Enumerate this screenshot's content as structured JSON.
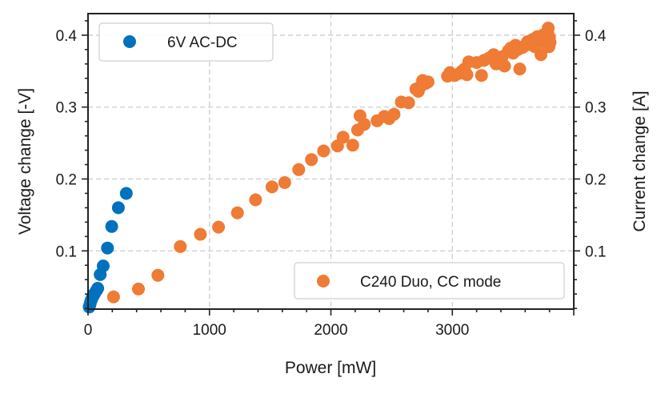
{
  "chart_data": {
    "type": "scatter",
    "xlabel": "Power [mW]",
    "ylabel": "Voltage change [-V]",
    "y2label": "Current change [A]",
    "xlim": [
      0,
      4000
    ],
    "ylim": [
      0.019,
      0.43
    ],
    "x_ticks": [
      0,
      1000,
      2000,
      3000
    ],
    "y_ticks": [
      0.1,
      0.2,
      0.3,
      0.4
    ],
    "y2_ticks": [
      0.1,
      0.2,
      0.3,
      0.4
    ],
    "grid": true,
    "series": [
      {
        "name": "6V AC-DC",
        "axis": "left",
        "color": "#0072bd",
        "legend_position": "top-left",
        "points": [
          [
            10,
            0.022
          ],
          [
            15,
            0.025
          ],
          [
            20,
            0.028
          ],
          [
            25,
            0.031
          ],
          [
            35,
            0.035
          ],
          [
            45,
            0.038
          ],
          [
            55,
            0.041
          ],
          [
            70,
            0.045
          ],
          [
            80,
            0.048
          ],
          [
            100,
            0.067
          ],
          [
            125,
            0.079
          ],
          [
            160,
            0.104
          ],
          [
            195,
            0.134
          ],
          [
            250,
            0.16
          ],
          [
            315,
            0.18
          ]
        ]
      },
      {
        "name": "C240 Duo, CC mode",
        "axis": "right",
        "color": "#ef7b35",
        "legend_position": "bottom-right",
        "points": [
          [
            210,
            0.036
          ],
          [
            415,
            0.047
          ],
          [
            575,
            0.066
          ],
          [
            760,
            0.106
          ],
          [
            925,
            0.123
          ],
          [
            1075,
            0.133
          ],
          [
            1230,
            0.153
          ],
          [
            1380,
            0.171
          ],
          [
            1515,
            0.189
          ],
          [
            1620,
            0.195
          ],
          [
            1735,
            0.213
          ],
          [
            1840,
            0.227
          ],
          [
            1940,
            0.239
          ],
          [
            2055,
            0.246
          ],
          [
            2100,
            0.258
          ],
          [
            2180,
            0.247
          ],
          [
            2220,
            0.268
          ],
          [
            2240,
            0.288
          ],
          [
            2275,
            0.276
          ],
          [
            2380,
            0.281
          ],
          [
            2440,
            0.287
          ],
          [
            2480,
            0.284
          ],
          [
            2520,
            0.29
          ],
          [
            2580,
            0.307
          ],
          [
            2640,
            0.306
          ],
          [
            2700,
            0.325
          ],
          [
            2720,
            0.322
          ],
          [
            2740,
            0.329
          ],
          [
            2755,
            0.337
          ],
          [
            2780,
            0.333
          ],
          [
            2800,
            0.335
          ],
          [
            2960,
            0.343
          ],
          [
            2980,
            0.348
          ],
          [
            3020,
            0.344
          ],
          [
            3060,
            0.347
          ],
          [
            3080,
            0.35
          ],
          [
            3100,
            0.353
          ],
          [
            3120,
            0.345
          ],
          [
            3135,
            0.363
          ],
          [
            3200,
            0.362
          ],
          [
            3240,
            0.344
          ],
          [
            3260,
            0.365
          ],
          [
            3300,
            0.368
          ],
          [
            3340,
            0.373
          ],
          [
            3360,
            0.36
          ],
          [
            3410,
            0.37
          ],
          [
            3430,
            0.357
          ],
          [
            3460,
            0.378
          ],
          [
            3480,
            0.382
          ],
          [
            3500,
            0.375
          ],
          [
            3520,
            0.386
          ],
          [
            3540,
            0.38
          ],
          [
            3555,
            0.353
          ],
          [
            3580,
            0.383
          ],
          [
            3600,
            0.386
          ],
          [
            3620,
            0.391
          ],
          [
            3640,
            0.387
          ],
          [
            3660,
            0.394
          ],
          [
            3680,
            0.384
          ],
          [
            3700,
            0.398
          ],
          [
            3720,
            0.396
          ],
          [
            3730,
            0.373
          ],
          [
            3745,
            0.4
          ],
          [
            3760,
            0.392
          ],
          [
            3775,
            0.388
          ],
          [
            3785,
            0.405
          ],
          [
            3790,
            0.41
          ],
          [
            3795,
            0.384
          ],
          [
            3800,
            0.397
          ],
          [
            3805,
            0.39
          ]
        ]
      }
    ]
  }
}
